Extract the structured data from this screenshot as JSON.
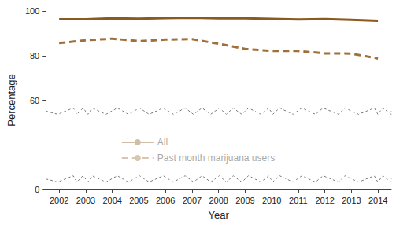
{
  "chart_data": {
    "type": "line",
    "x_label": "Year",
    "y_label": "Percentage",
    "categories": [
      "2002",
      "2003",
      "2004",
      "2005",
      "2006",
      "2007",
      "2008",
      "2009",
      "2010",
      "2011",
      "2012",
      "2013",
      "2014"
    ],
    "series": [
      {
        "name": "All",
        "color": "#8b5a1e",
        "line_style": "solid",
        "values": [
          96.3,
          96.3,
          96.7,
          96.6,
          96.8,
          97.0,
          96.7,
          96.7,
          96.5,
          96.2,
          96.4,
          96.0,
          95.6
        ]
      },
      {
        "name": "Past month marijuana users",
        "color": "#a0703a",
        "line_style": "dashed",
        "values": [
          85.6,
          86.9,
          87.6,
          86.5,
          87.2,
          87.4,
          85.3,
          83.0,
          82.1,
          82.1,
          81.0,
          80.9,
          78.7
        ]
      }
    ],
    "marker": "none",
    "ylim": [
      0,
      100
    ],
    "yticks": [
      0,
      60,
      80,
      100
    ],
    "grid": false,
    "legend": "lower center"
  }
}
